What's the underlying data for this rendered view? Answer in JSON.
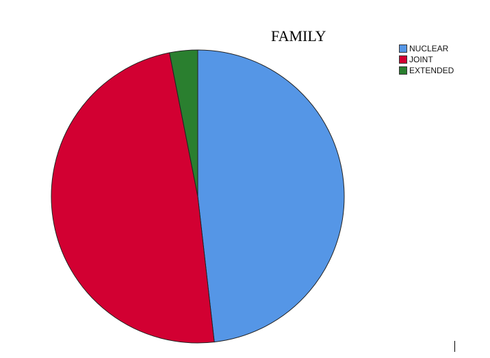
{
  "chart_data": {
    "type": "pie",
    "title": "FAMILY",
    "legend_position": "top-right",
    "slices": [
      {
        "label": "NUCLEAR",
        "value": 48.2,
        "color": "#5596e6"
      },
      {
        "label": "JOINT",
        "value": 48.7,
        "color": "#d20032"
      },
      {
        "label": "EXTENDED",
        "value": 3.1,
        "color": "#2a7f2f"
      }
    ]
  }
}
